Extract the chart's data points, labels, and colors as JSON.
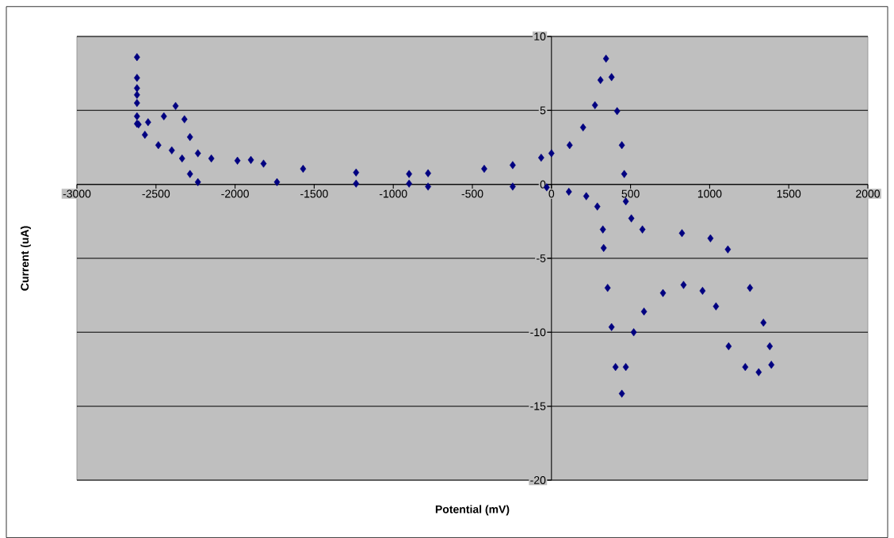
{
  "chart_data": {
    "type": "scatter",
    "xlabel": "Potential (mV)",
    "ylabel": "Current (uA)",
    "color": "#000080",
    "marker": "diamond",
    "grid": "y",
    "xlim": [
      -3000,
      2000
    ],
    "ylim": [
      -20,
      10
    ],
    "xticks": [
      -3000,
      -2500,
      -2000,
      -1500,
      -1000,
      -500,
      0,
      500,
      1000,
      1500,
      2000
    ],
    "yticks": [
      -20,
      -15,
      -10,
      -5,
      0,
      5,
      10
    ],
    "x": [
      -2620,
      -2620,
      -2620,
      -2620,
      -2620,
      -2620,
      -2620,
      -2550,
      -2450,
      -2376,
      -2320,
      -2285,
      -2235,
      -2150,
      -1985,
      -1900,
      -1820,
      -1570,
      -1235,
      -900,
      -780,
      -425,
      -245,
      -65,
      0,
      115,
      200,
      275,
      310,
      345,
      380,
      415,
      445,
      460,
      470,
      505,
      575,
      825,
      1005,
      1115,
      1255,
      1340,
      1380,
      1390,
      1310,
      1225,
      1120,
      1040,
      955,
      835,
      705,
      585,
      520,
      470,
      445,
      405,
      380,
      355,
      330,
      325,
      290,
      220,
      110,
      -30,
      -245,
      -780,
      -900,
      -1235,
      -1735,
      -2235,
      -2285,
      -2335,
      -2400,
      -2485,
      -2570,
      -2610
    ],
    "values": [
      8.6,
      7.2,
      6.5,
      6.05,
      5.5,
      4.6,
      4.1,
      4.2,
      4.6,
      5.3,
      4.4,
      3.2,
      2.1,
      1.75,
      1.6,
      1.65,
      1.4,
      1.05,
      0.8,
      0.7,
      0.75,
      1.05,
      1.3,
      1.8,
      2.1,
      2.65,
      3.85,
      5.35,
      7.05,
      8.5,
      7.25,
      4.95,
      2.65,
      0.7,
      -1.15,
      -2.3,
      -3.05,
      -3.3,
      -3.65,
      -4.4,
      -7.0,
      -9.35,
      -10.95,
      -12.2,
      -12.7,
      -12.35,
      -10.95,
      -8.25,
      -7.2,
      -6.8,
      -7.35,
      -8.6,
      -10.0,
      -12.35,
      -14.15,
      -12.35,
      -9.65,
      -7.0,
      -4.3,
      -3.05,
      -1.5,
      -0.8,
      -0.5,
      -0.2,
      -0.15,
      -0.15,
      0.05,
      0.05,
      0.15,
      0.15,
      0.7,
      1.75,
      2.3,
      2.65,
      3.35,
      4.05
    ]
  }
}
